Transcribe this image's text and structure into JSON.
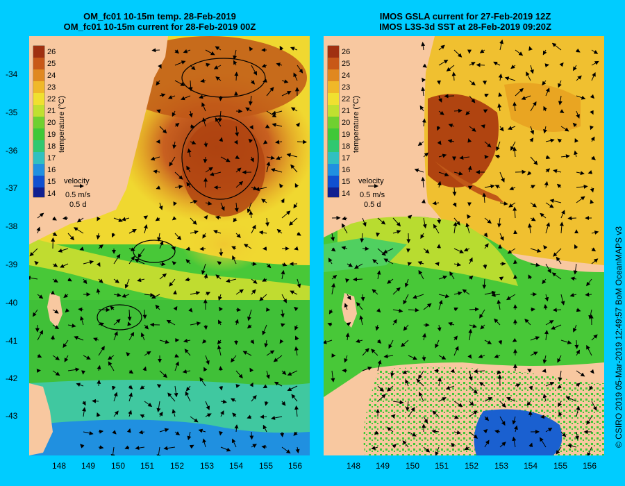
{
  "panels": [
    {
      "title1": "OM_fc01 10-15m temp. 28-Feb-2019",
      "title2": "OM_fc01 10-15m current for 28-Feb-2019 00Z"
    },
    {
      "title1": "IMOS GSLA current for 27-Feb-2019 12Z",
      "title2": "IMOS L3S-3d SST at 28-Feb-2019 09:20Z"
    }
  ],
  "colorbar": {
    "ticks": [
      "26",
      "25",
      "24",
      "23",
      "22",
      "21",
      "20",
      "19",
      "18",
      "17",
      "16",
      "15",
      "14"
    ],
    "label": "temperature (°C)"
  },
  "velocity_key": {
    "label": "velocity",
    "speed": "0.5 m/s",
    "duration": "0.5 d"
  },
  "y_ticks": [
    "-34",
    "-35",
    "-36",
    "-37",
    "-38",
    "-39",
    "-40",
    "-41",
    "-42",
    "-43"
  ],
  "x_ticks": [
    "148",
    "149",
    "150",
    "151",
    "152",
    "153",
    "154",
    "155",
    "156"
  ],
  "credit": "© CSIRO 2019   05-Mar-2019 12:49:57 BoM OceanMAPS v3",
  "colors": {
    "background": "#00ccff",
    "land": "#f8c8a0",
    "warm": "#b04010",
    "orange": "#e8a020",
    "yellow": "#f0e030",
    "green": "#50d030",
    "cool": "#30b0d0",
    "cold": "#1060d0"
  }
}
